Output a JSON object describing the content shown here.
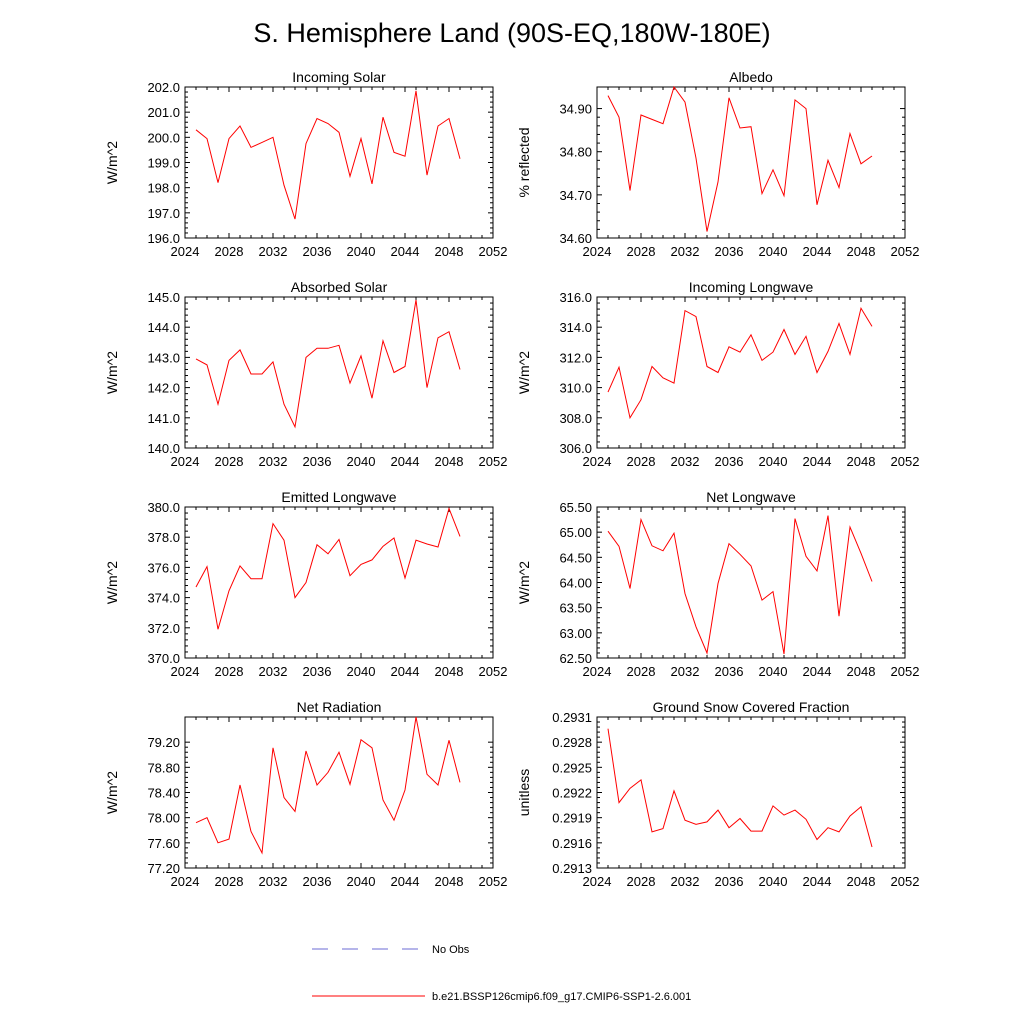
{
  "figure": {
    "title": "S. Hemisphere Land (90S-EQ,180W-180E)"
  },
  "legend": {
    "entries": [
      {
        "label": "No Obs",
        "color": "#6b6bd6",
        "style": "dashed"
      },
      {
        "label": "b.e21.BSSP126cmip6.f09_g17.CMIP6-SSP1-2.6.001",
        "color": "#ff0000",
        "style": "solid"
      }
    ]
  },
  "chart_data": [
    {
      "type": "line",
      "title": "Incoming Solar",
      "xlabel": "",
      "ylabel": "W/m^2",
      "xlim": [
        2024,
        2052
      ],
      "ylim": [
        196,
        202
      ],
      "xticks": [
        2024,
        2028,
        2032,
        2036,
        2040,
        2044,
        2048,
        2052
      ],
      "xtick_labels": [
        "2024",
        "2028",
        "2032",
        "2036",
        "2040",
        "2044",
        "2048",
        "2052"
      ],
      "yticks": [
        196,
        197,
        198,
        199,
        200,
        201,
        202
      ],
      "ytick_labels": [
        "196.0",
        "197.0",
        "198.0",
        "199.0",
        "200.0",
        "201.0",
        "202.0"
      ],
      "grid": false,
      "series": [
        {
          "color": "#ff0000",
          "x": [
            2025,
            2026,
            2027,
            2028,
            2029,
            2030,
            2031,
            2032,
            2033,
            2034,
            2035,
            2036,
            2037,
            2038,
            2039,
            2040,
            2041,
            2042,
            2043,
            2044,
            2045,
            2046,
            2047,
            2048,
            2049
          ],
          "y": [
            200.3,
            199.95,
            198.2,
            199.95,
            200.45,
            199.6,
            199.8,
            200.0,
            198.1,
            196.75,
            199.75,
            200.75,
            200.55,
            200.2,
            198.45,
            199.95,
            198.15,
            200.8,
            199.4,
            199.25,
            201.85,
            198.5,
            200.45,
            200.75,
            199.15
          ]
        }
      ]
    },
    {
      "type": "line",
      "title": "Albedo",
      "xlabel": "",
      "ylabel": "% reflected",
      "xlim": [
        2024,
        2052
      ],
      "ylim": [
        34.6,
        34.95
      ],
      "xticks": [
        2024,
        2028,
        2032,
        2036,
        2040,
        2044,
        2048,
        2052
      ],
      "xtick_labels": [
        "2024",
        "2028",
        "2032",
        "2036",
        "2040",
        "2044",
        "2048",
        "2052"
      ],
      "yticks": [
        34.6,
        34.7,
        34.8,
        34.9
      ],
      "ytick_labels": [
        "34.60",
        "34.70",
        "34.80",
        "34.90"
      ],
      "grid": false,
      "series": [
        {
          "color": "#ff0000",
          "x": [
            2025,
            2026,
            2027,
            2028,
            2029,
            2030,
            2031,
            2032,
            2033,
            2034,
            2035,
            2036,
            2037,
            2038,
            2039,
            2040,
            2041,
            2042,
            2043,
            2044,
            2045,
            2046,
            2047,
            2048,
            2049
          ],
          "y": [
            34.93,
            34.88,
            34.71,
            34.885,
            34.875,
            34.865,
            34.95,
            34.915,
            34.785,
            34.615,
            34.73,
            34.925,
            34.855,
            34.858,
            34.703,
            34.758,
            34.698,
            34.92,
            34.9,
            34.677,
            34.78,
            34.717,
            34.842,
            34.772,
            34.79
          ]
        }
      ]
    },
    {
      "type": "line",
      "title": "Absorbed Solar",
      "xlabel": "",
      "ylabel": "W/m^2",
      "xlim": [
        2024,
        2052
      ],
      "ylim": [
        140,
        145
      ],
      "xticks": [
        2024,
        2028,
        2032,
        2036,
        2040,
        2044,
        2048,
        2052
      ],
      "xtick_labels": [
        "2024",
        "2028",
        "2032",
        "2036",
        "2040",
        "2044",
        "2048",
        "2052"
      ],
      "yticks": [
        140,
        141,
        142,
        143,
        144,
        145
      ],
      "ytick_labels": [
        "140.0",
        "141.0",
        "142.0",
        "143.0",
        "144.0",
        "145.0"
      ],
      "grid": false,
      "series": [
        {
          "color": "#ff0000",
          "x": [
            2025,
            2026,
            2027,
            2028,
            2029,
            2030,
            2031,
            2032,
            2033,
            2034,
            2035,
            2036,
            2037,
            2038,
            2039,
            2040,
            2041,
            2042,
            2043,
            2044,
            2045,
            2046,
            2047,
            2048,
            2049
          ],
          "y": [
            142.95,
            142.75,
            141.45,
            142.9,
            143.25,
            142.45,
            142.45,
            142.85,
            141.45,
            140.7,
            143.0,
            143.3,
            143.3,
            143.4,
            142.15,
            143.05,
            141.65,
            143.55,
            142.5,
            142.7,
            144.9,
            142.0,
            143.65,
            143.85,
            142.6
          ]
        }
      ]
    },
    {
      "type": "line",
      "title": "Incoming Longwave",
      "xlabel": "",
      "ylabel": "W/m^2",
      "xlim": [
        2024,
        2052
      ],
      "ylim": [
        306,
        316
      ],
      "xticks": [
        2024,
        2028,
        2032,
        2036,
        2040,
        2044,
        2048,
        2052
      ],
      "xtick_labels": [
        "2024",
        "2028",
        "2032",
        "2036",
        "2040",
        "2044",
        "2048",
        "2052"
      ],
      "yticks": [
        306,
        308,
        310,
        312,
        314,
        316
      ],
      "ytick_labels": [
        "306.0",
        "308.0",
        "310.0",
        "312.0",
        "314.0",
        "316.0"
      ],
      "grid": false,
      "series": [
        {
          "color": "#ff0000",
          "x": [
            2025,
            2026,
            2027,
            2028,
            2029,
            2030,
            2031,
            2032,
            2033,
            2034,
            2035,
            2036,
            2037,
            2038,
            2039,
            2040,
            2041,
            2042,
            2043,
            2044,
            2045,
            2046,
            2047,
            2048,
            2049
          ],
          "y": [
            309.7,
            311.35,
            308.0,
            309.2,
            311.4,
            310.65,
            310.3,
            315.1,
            314.7,
            311.4,
            311.0,
            312.7,
            312.35,
            313.5,
            311.8,
            312.35,
            313.85,
            312.2,
            313.4,
            311.0,
            312.4,
            314.25,
            312.2,
            315.25,
            314.05
          ]
        }
      ]
    },
    {
      "type": "line",
      "title": "Emitted Longwave",
      "xlabel": "",
      "ylabel": "W/m^2",
      "xlim": [
        2024,
        2052
      ],
      "ylim": [
        370,
        380
      ],
      "xticks": [
        2024,
        2028,
        2032,
        2036,
        2040,
        2044,
        2048,
        2052
      ],
      "xtick_labels": [
        "2024",
        "2028",
        "2032",
        "2036",
        "2040",
        "2044",
        "2048",
        "2052"
      ],
      "yticks": [
        370,
        372,
        374,
        376,
        378,
        380
      ],
      "ytick_labels": [
        "370.0",
        "372.0",
        "374.0",
        "376.0",
        "378.0",
        "380.0"
      ],
      "grid": false,
      "series": [
        {
          "color": "#ff0000",
          "x": [
            2025,
            2026,
            2027,
            2028,
            2029,
            2030,
            2031,
            2032,
            2033,
            2034,
            2035,
            2036,
            2037,
            2038,
            2039,
            2040,
            2041,
            2042,
            2043,
            2044,
            2045,
            2046,
            2047,
            2048,
            2049
          ],
          "y": [
            374.7,
            376.05,
            371.9,
            374.45,
            376.1,
            375.25,
            375.25,
            378.9,
            377.8,
            374.0,
            375.0,
            377.5,
            376.9,
            377.85,
            375.45,
            376.2,
            376.5,
            377.4,
            377.95,
            375.3,
            377.8,
            377.55,
            377.35,
            379.9,
            378.05
          ]
        }
      ]
    },
    {
      "type": "line",
      "title": "Net Longwave",
      "xlabel": "",
      "ylabel": "W/m^2",
      "xlim": [
        2024,
        2052
      ],
      "ylim": [
        62.5,
        65.5
      ],
      "xticks": [
        2024,
        2028,
        2032,
        2036,
        2040,
        2044,
        2048,
        2052
      ],
      "xtick_labels": [
        "2024",
        "2028",
        "2032",
        "2036",
        "2040",
        "2044",
        "2048",
        "2052"
      ],
      "yticks": [
        62.5,
        63.0,
        63.5,
        64.0,
        64.5,
        65.0,
        65.5
      ],
      "ytick_labels": [
        "62.50",
        "63.00",
        "63.50",
        "64.00",
        "64.50",
        "65.00",
        "65.50"
      ],
      "grid": false,
      "series": [
        {
          "color": "#ff0000",
          "x": [
            2025,
            2026,
            2027,
            2028,
            2029,
            2030,
            2031,
            2032,
            2033,
            2034,
            2035,
            2036,
            2037,
            2038,
            2039,
            2040,
            2041,
            2042,
            2043,
            2044,
            2045,
            2046,
            2047,
            2048,
            2049
          ],
          "y": [
            65.02,
            64.72,
            63.88,
            65.25,
            64.73,
            64.63,
            64.98,
            63.78,
            63.12,
            62.6,
            63.98,
            64.77,
            64.56,
            64.33,
            63.65,
            63.82,
            62.58,
            65.27,
            64.52,
            64.23,
            65.33,
            63.33,
            65.1,
            64.58,
            64.02
          ]
        }
      ]
    },
    {
      "type": "line",
      "title": "Net Radiation",
      "xlabel": "",
      "ylabel": "W/m^2",
      "xlim": [
        2024,
        2052
      ],
      "ylim": [
        77.2,
        79.6
      ],
      "xticks": [
        2024,
        2028,
        2032,
        2036,
        2040,
        2044,
        2048,
        2052
      ],
      "xtick_labels": [
        "2024",
        "2028",
        "2032",
        "2036",
        "2040",
        "2044",
        "2048",
        "2052"
      ],
      "yticks": [
        77.2,
        77.6,
        78.0,
        78.4,
        78.8,
        79.2
      ],
      "ytick_labels": [
        "77.20",
        "77.60",
        "78.00",
        "78.40",
        "78.80",
        "79.20"
      ],
      "grid": false,
      "series": [
        {
          "color": "#ff0000",
          "x": [
            2025,
            2026,
            2027,
            2028,
            2029,
            2030,
            2031,
            2032,
            2033,
            2034,
            2035,
            2036,
            2037,
            2038,
            2039,
            2040,
            2041,
            2042,
            2043,
            2044,
            2045,
            2046,
            2047,
            2048,
            2049
          ],
          "y": [
            77.92,
            78.0,
            77.6,
            77.66,
            78.52,
            77.78,
            77.44,
            79.11,
            78.32,
            78.1,
            79.06,
            78.52,
            78.72,
            79.04,
            78.53,
            79.24,
            79.11,
            78.28,
            77.96,
            78.44,
            79.6,
            78.69,
            78.52,
            79.23,
            78.56
          ]
        }
      ]
    },
    {
      "type": "line",
      "title": "Ground Snow Covered Fraction",
      "xlabel": "",
      "ylabel": "unitless",
      "xlim": [
        2024,
        2052
      ],
      "ylim": [
        0.2913,
        0.2931
      ],
      "xticks": [
        2024,
        2028,
        2032,
        2036,
        2040,
        2044,
        2048,
        2052
      ],
      "xtick_labels": [
        "2024",
        "2028",
        "2032",
        "2036",
        "2040",
        "2044",
        "2048",
        "2052"
      ],
      "yticks": [
        0.2913,
        0.2916,
        0.2919,
        0.2922,
        0.2925,
        0.2928,
        0.2931
      ],
      "ytick_labels": [
        "0.2913",
        "0.2916",
        "0.2919",
        "0.2922",
        "0.2925",
        "0.2928",
        "0.2931"
      ],
      "grid": false,
      "series": [
        {
          "color": "#ff0000",
          "x": [
            2025,
            2026,
            2027,
            2028,
            2029,
            2030,
            2031,
            2032,
            2033,
            2034,
            2035,
            2036,
            2037,
            2038,
            2039,
            2040,
            2041,
            2042,
            2043,
            2044,
            2045,
            2046,
            2047,
            2048,
            2049
          ],
          "y": [
            0.29296,
            0.29208,
            0.29225,
            0.29235,
            0.29173,
            0.29177,
            0.29222,
            0.29187,
            0.29182,
            0.29185,
            0.29199,
            0.29178,
            0.29189,
            0.29174,
            0.29174,
            0.29204,
            0.29193,
            0.29199,
            0.29188,
            0.29164,
            0.29178,
            0.29173,
            0.29192,
            0.29203,
            0.29155
          ]
        }
      ]
    }
  ]
}
